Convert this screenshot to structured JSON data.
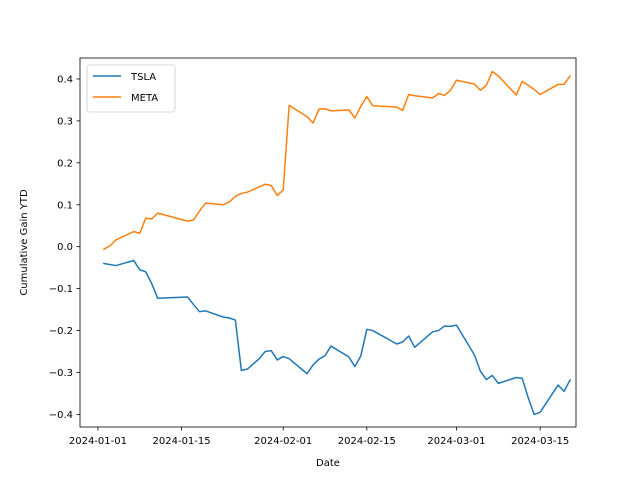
{
  "chart_data": {
    "type": "line",
    "title": "",
    "xlabel": "Date",
    "ylabel": "Cumulative Gain YTD",
    "xlim": [
      "2023-12-29",
      "2024-03-21"
    ],
    "ylim": [
      -0.43,
      0.45
    ],
    "x_ticks": [
      "2024-01-01",
      "2024-01-15",
      "2024-02-01",
      "2024-02-15",
      "2024-03-01",
      "2024-03-15"
    ],
    "y_ticks": [
      -0.4,
      -0.3,
      -0.2,
      -0.1,
      0.0,
      0.1,
      0.2,
      0.3,
      0.4
    ],
    "y_tick_labels": [
      "−0.4",
      "−0.3",
      "−0.2",
      "−0.1",
      "0.0",
      "0.1",
      "0.2",
      "0.3",
      "0.4"
    ],
    "grid": false,
    "legend_position": "top-left",
    "series": [
      {
        "name": "TSLA",
        "color": "#1f77b4",
        "points": [
          [
            "2024-01-02",
            -0.04
          ],
          [
            "2024-01-04",
            -0.045
          ],
          [
            "2024-01-07",
            -0.033
          ],
          [
            "2024-01-08",
            -0.055
          ],
          [
            "2024-01-09",
            -0.06
          ],
          [
            "2024-01-10",
            -0.088
          ],
          [
            "2024-01-11",
            -0.123
          ],
          [
            "2024-01-16",
            -0.12
          ],
          [
            "2024-01-17",
            -0.138
          ],
          [
            "2024-01-18",
            -0.155
          ],
          [
            "2024-01-19",
            -0.153
          ],
          [
            "2024-01-22",
            -0.168
          ],
          [
            "2024-01-23",
            -0.17
          ],
          [
            "2024-01-24",
            -0.175
          ],
          [
            "2024-01-25",
            -0.295
          ],
          [
            "2024-01-26",
            -0.292
          ],
          [
            "2024-01-28",
            -0.267
          ],
          [
            "2024-01-29",
            -0.25
          ],
          [
            "2024-01-30",
            -0.248
          ],
          [
            "2024-01-31",
            -0.27
          ],
          [
            "2024-02-01",
            -0.262
          ],
          [
            "2024-02-02",
            -0.267
          ],
          [
            "2024-02-05",
            -0.303
          ],
          [
            "2024-02-06",
            -0.282
          ],
          [
            "2024-02-07",
            -0.268
          ],
          [
            "2024-02-08",
            -0.26
          ],
          [
            "2024-02-09",
            -0.237
          ],
          [
            "2024-02-12",
            -0.263
          ],
          [
            "2024-02-13",
            -0.286
          ],
          [
            "2024-02-14",
            -0.26
          ],
          [
            "2024-02-15",
            -0.197
          ],
          [
            "2024-02-16",
            -0.2
          ],
          [
            "2024-02-20",
            -0.232
          ],
          [
            "2024-02-21",
            -0.227
          ],
          [
            "2024-02-22",
            -0.213
          ],
          [
            "2024-02-23",
            -0.24
          ],
          [
            "2024-02-26",
            -0.203
          ],
          [
            "2024-02-27",
            -0.2
          ],
          [
            "2024-02-28",
            -0.189
          ],
          [
            "2024-02-29",
            -0.19
          ],
          [
            "2024-03-01",
            -0.187
          ],
          [
            "2024-03-04",
            -0.258
          ],
          [
            "2024-03-05",
            -0.297
          ],
          [
            "2024-03-06",
            -0.317
          ],
          [
            "2024-03-07",
            -0.307
          ],
          [
            "2024-03-08",
            -0.326
          ],
          [
            "2024-03-11",
            -0.312
          ],
          [
            "2024-03-12",
            -0.314
          ],
          [
            "2024-03-13",
            -0.36
          ],
          [
            "2024-03-14",
            -0.4
          ],
          [
            "2024-03-15",
            -0.395
          ],
          [
            "2024-03-18",
            -0.33
          ],
          [
            "2024-03-19",
            -0.345
          ],
          [
            "2024-03-20",
            -0.318
          ]
        ]
      },
      {
        "name": "META",
        "color": "#ff7f0e",
        "points": [
          [
            "2024-01-02",
            -0.006
          ],
          [
            "2024-01-03",
            0.002
          ],
          [
            "2024-01-04",
            0.016
          ],
          [
            "2024-01-07",
            0.036
          ],
          [
            "2024-01-08",
            0.032
          ],
          [
            "2024-01-09",
            0.068
          ],
          [
            "2024-01-10",
            0.066
          ],
          [
            "2024-01-11",
            0.08
          ],
          [
            "2024-01-16",
            0.061
          ],
          [
            "2024-01-17",
            0.064
          ],
          [
            "2024-01-18",
            0.085
          ],
          [
            "2024-01-19",
            0.104
          ],
          [
            "2024-01-22",
            0.1
          ],
          [
            "2024-01-23",
            0.107
          ],
          [
            "2024-01-24",
            0.12
          ],
          [
            "2024-01-25",
            0.127
          ],
          [
            "2024-01-26",
            0.13
          ],
          [
            "2024-01-29",
            0.149
          ],
          [
            "2024-01-30",
            0.146
          ],
          [
            "2024-01-31",
            0.122
          ],
          [
            "2024-02-01",
            0.135
          ],
          [
            "2024-02-02",
            0.337
          ],
          [
            "2024-02-05",
            0.31
          ],
          [
            "2024-02-06",
            0.295
          ],
          [
            "2024-02-07",
            0.328
          ],
          [
            "2024-02-08",
            0.329
          ],
          [
            "2024-02-09",
            0.324
          ],
          [
            "2024-02-12",
            0.326
          ],
          [
            "2024-02-13",
            0.307
          ],
          [
            "2024-02-14",
            0.335
          ],
          [
            "2024-02-15",
            0.358
          ],
          [
            "2024-02-16",
            0.336
          ],
          [
            "2024-02-20",
            0.333
          ],
          [
            "2024-02-21",
            0.325
          ],
          [
            "2024-02-22",
            0.363
          ],
          [
            "2024-02-23",
            0.36
          ],
          [
            "2024-02-26",
            0.355
          ],
          [
            "2024-02-27",
            0.365
          ],
          [
            "2024-02-28",
            0.361
          ],
          [
            "2024-02-29",
            0.373
          ],
          [
            "2024-03-01",
            0.397
          ],
          [
            "2024-03-04",
            0.388
          ],
          [
            "2024-03-05",
            0.373
          ],
          [
            "2024-03-06",
            0.385
          ],
          [
            "2024-03-07",
            0.418
          ],
          [
            "2024-03-08",
            0.407
          ],
          [
            "2024-03-11",
            0.362
          ],
          [
            "2024-03-12",
            0.394
          ],
          [
            "2024-03-13",
            0.385
          ],
          [
            "2024-03-14",
            0.375
          ],
          [
            "2024-03-15",
            0.363
          ],
          [
            "2024-03-18",
            0.387
          ],
          [
            "2024-03-19",
            0.387
          ],
          [
            "2024-03-20",
            0.407
          ]
        ]
      }
    ]
  }
}
